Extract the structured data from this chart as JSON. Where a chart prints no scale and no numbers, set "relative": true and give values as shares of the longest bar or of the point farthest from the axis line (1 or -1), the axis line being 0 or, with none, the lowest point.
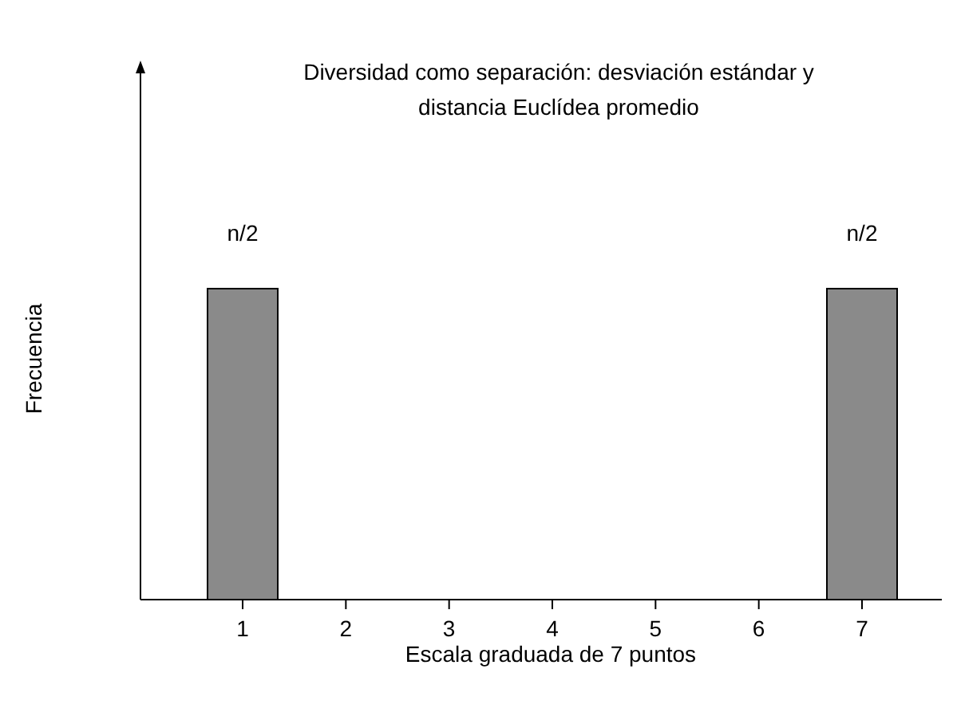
{
  "chart_data": {
    "type": "bar",
    "title": "Diversidad como separación: desviación estándar y distancia Euclídea promedio",
    "xlabel": "Escala graduada de 7 puntos",
    "ylabel": "Frecuencia",
    "categories": [
      "1",
      "2",
      "3",
      "4",
      "5",
      "6",
      "7"
    ],
    "values": [
      1,
      0,
      0,
      0,
      0,
      0,
      1
    ],
    "annotations": [
      {
        "text": "n/2",
        "x": "1",
        "y": 1
      },
      {
        "text": "n/2",
        "x": "7",
        "y": 1
      }
    ],
    "relative": true,
    "color": "#8a8a8a"
  }
}
